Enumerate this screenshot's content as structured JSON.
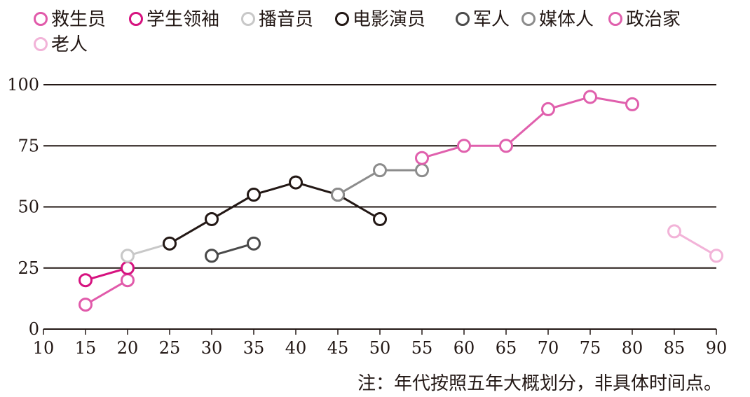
{
  "chart_data": {
    "type": "line",
    "title": "",
    "xlabel": "",
    "ylabel": "",
    "xlim": [
      10,
      90
    ],
    "ylim": [
      0,
      100
    ],
    "x_ticks": [
      10,
      15,
      20,
      25,
      30,
      35,
      40,
      45,
      50,
      55,
      60,
      65,
      70,
      75,
      80,
      85,
      90
    ],
    "y_ticks": [
      0,
      25,
      50,
      75,
      100
    ],
    "grid": "horizontal",
    "legend_position": "top",
    "note": "注：年代按照五年大概划分，非具体时间点。",
    "series": [
      {
        "name": "救生员",
        "color": "#e15aaa",
        "points": [
          [
            15,
            10
          ],
          [
            20,
            20
          ]
        ]
      },
      {
        "name": "学生领袖",
        "color": "#d6127f",
        "points": [
          [
            15,
            20
          ],
          [
            20,
            25
          ]
        ]
      },
      {
        "name": "播音员",
        "color": "#c8c8c8",
        "points": [
          [
            20,
            30
          ],
          [
            25,
            35
          ]
        ]
      },
      {
        "name": "电影演员",
        "color": "#231815",
        "points": [
          [
            25,
            35
          ],
          [
            30,
            45
          ],
          [
            35,
            55
          ],
          [
            40,
            60
          ],
          [
            45,
            55
          ],
          [
            50,
            45
          ]
        ]
      },
      {
        "name": "军人",
        "color": "#4a4a4a",
        "points": [
          [
            30,
            30
          ],
          [
            35,
            35
          ]
        ]
      },
      {
        "name": "媒体人",
        "color": "#8c8c8c",
        "points": [
          [
            45,
            55
          ],
          [
            50,
            65
          ],
          [
            55,
            65
          ]
        ]
      },
      {
        "name": "政治家",
        "color": "#e060ad",
        "points": [
          [
            55,
            70
          ],
          [
            60,
            75
          ],
          [
            65,
            75
          ],
          [
            70,
            90
          ],
          [
            75,
            95
          ],
          [
            80,
            92
          ]
        ]
      },
      {
        "name": "老人",
        "color": "#f2b3d8",
        "points": [
          [
            85,
            40
          ],
          [
            90,
            30
          ]
        ]
      }
    ]
  }
}
